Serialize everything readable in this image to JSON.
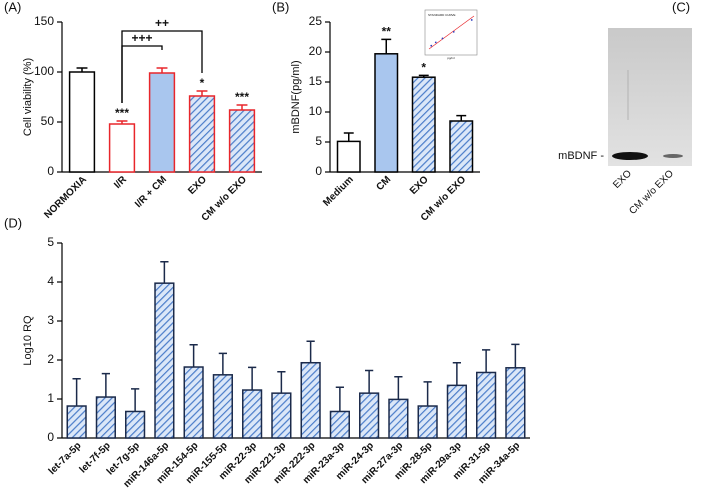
{
  "chart_data": [
    {
      "type": "bar",
      "label": "(A)",
      "ylabel": "Cell viability (%)",
      "categories": [
        "NORMOXIA",
        "I/R",
        "I/R + CM",
        "EXO",
        "CM w/o EXO"
      ],
      "values": [
        100,
        48,
        99,
        76,
        62
      ],
      "errors": [
        4,
        3,
        5,
        5,
        5
      ],
      "annotations": [
        null,
        "***",
        null,
        "*",
        "***"
      ],
      "brackets": [
        {
          "from": 1,
          "to": 2,
          "label": "+++"
        },
        {
          "from": 1,
          "to": 3,
          "label": "++"
        }
      ],
      "fills": [
        "#ffffff",
        "#ffffff",
        "#a9c6ee",
        "hatch",
        "hatch"
      ],
      "strokes": [
        "#000000",
        "#e8262b",
        "#e8262b",
        "#e8262b",
        "#e8262b"
      ],
      "hatch_color": "#4a7cc9",
      "ylim": [
        0,
        150
      ],
      "yticks": [
        0,
        50,
        100,
        150
      ]
    },
    {
      "type": "bar",
      "label": "(B)",
      "ylabel": "mBDNF(pg/ml)",
      "categories": [
        "Medium",
        "CM",
        "EXO",
        "CM w/o EXO"
      ],
      "values": [
        5.1,
        19.7,
        15.8,
        8.5
      ],
      "errors": [
        1.4,
        2.4,
        0.3,
        0.9
      ],
      "annotations": [
        null,
        "**",
        "*",
        null
      ],
      "fills": [
        "#ffffff",
        "#a9c6ee",
        "hatch",
        "hatch"
      ],
      "strokes": [
        "#000000",
        "#000000",
        "#000000",
        "#000000"
      ],
      "hatch_color": "#4a7cc9",
      "inset": {
        "title": "STANDARD CURVE",
        "xlabel": "pg/ml"
      },
      "ylim": [
        0,
        25
      ],
      "yticks": [
        0,
        5,
        10,
        15,
        20,
        25
      ]
    },
    {
      "type": "bar",
      "label": "(D)",
      "ylabel": "Log10 RQ",
      "categories": [
        "let-7a-5p",
        "let-7f-5p",
        "let-7g-5p",
        "miR-146a-5p",
        "miR-154-5p",
        "miR-155-5p",
        "miR-22-3p",
        "miR-221-3p",
        "miR-222-3p",
        "miR-23a-3p",
        "miR-24-3p",
        "miR-27a-3p",
        "miR-28-5p",
        "miR-29a-3p",
        "miR-31-5p",
        "miR-34a-5p"
      ],
      "values": [
        0.82,
        1.05,
        0.68,
        3.97,
        1.82,
        1.62,
        1.23,
        1.15,
        1.93,
        0.68,
        1.15,
        0.99,
        0.82,
        1.35,
        1.68,
        1.8
      ],
      "errors": [
        0.7,
        0.6,
        0.58,
        0.55,
        0.57,
        0.55,
        0.58,
        0.55,
        0.55,
        0.62,
        0.58,
        0.58,
        0.62,
        0.58,
        0.58,
        0.6
      ],
      "fills": [
        "hatch",
        "hatch",
        "hatch",
        "hatch",
        "hatch",
        "hatch",
        "hatch",
        "hatch",
        "hatch",
        "hatch",
        "hatch",
        "hatch",
        "hatch",
        "hatch",
        "hatch",
        "hatch"
      ],
      "strokes": [
        "#1b2a4a",
        "#1b2a4a",
        "#1b2a4a",
        "#1b2a4a",
        "#1b2a4a",
        "#1b2a4a",
        "#1b2a4a",
        "#1b2a4a",
        "#1b2a4a",
        "#1b2a4a",
        "#1b2a4a",
        "#1b2a4a",
        "#1b2a4a",
        "#1b2a4a",
        "#1b2a4a",
        "#1b2a4a"
      ],
      "hatch_color": "#4a7cc9",
      "ylim": [
        0,
        5
      ],
      "yticks": [
        0,
        1,
        2,
        3,
        4,
        5
      ]
    }
  ],
  "blot": {
    "label": "(C)",
    "band_label": "mBDNF -",
    "lanes": [
      "EXO",
      "CM w/o EXO"
    ]
  }
}
